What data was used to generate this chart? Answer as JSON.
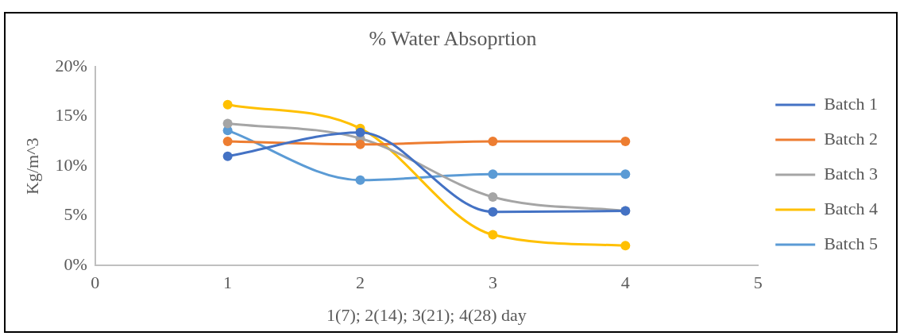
{
  "chart_data": {
    "type": "line",
    "title": "% Water Absoprtion",
    "xlabel": "1(7); 2(14); 3(21); 4(28) day",
    "ylabel": "Kg/m^3",
    "x": [
      1,
      2,
      3,
      4
    ],
    "series": [
      {
        "name": "Batch 1",
        "color": "#4472c4",
        "values": [
          11.0,
          13.4,
          5.4,
          5.5
        ]
      },
      {
        "name": "Batch 2",
        "color": "#ed7d31",
        "values": [
          12.5,
          12.2,
          12.5,
          12.5
        ]
      },
      {
        "name": "Batch 3",
        "color": "#a5a5a5",
        "values": [
          14.3,
          12.8,
          6.9,
          5.5
        ]
      },
      {
        "name": "Batch 4",
        "color": "#ffc000",
        "values": [
          16.2,
          13.8,
          3.1,
          2.0
        ]
      },
      {
        "name": "Batch 5",
        "color": "#5b9bd5",
        "values": [
          13.6,
          8.6,
          9.2,
          9.2
        ]
      }
    ],
    "xlim": [
      0,
      5
    ],
    "xticks": [
      0,
      1,
      2,
      3,
      4,
      5
    ],
    "ylim": [
      0,
      20
    ],
    "yticks": [
      {
        "value": 0,
        "label": "0%"
      },
      {
        "value": 5,
        "label": "5%"
      },
      {
        "value": 10,
        "label": "10%"
      },
      {
        "value": 15,
        "label": "15%"
      },
      {
        "value": 20,
        "label": "20%"
      }
    ],
    "grid": false,
    "legend": "right",
    "marker": "circle",
    "line_style": "solid"
  }
}
